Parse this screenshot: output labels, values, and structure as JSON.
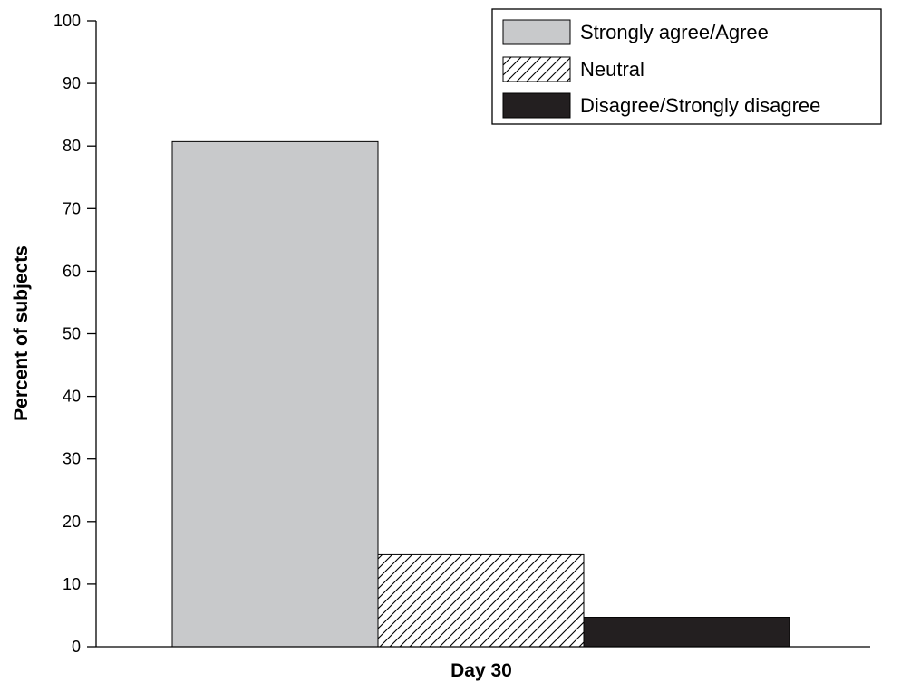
{
  "chart_data": {
    "type": "bar",
    "categories": [
      "Day 30"
    ],
    "series": [
      {
        "name": "Strongly agree/Agree",
        "values": [
          80.7
        ],
        "fill": "#c8c9cb",
        "pattern": "solid"
      },
      {
        "name": "Neutral",
        "values": [
          14.7
        ],
        "fill": "#ffffff",
        "pattern": "diagonal-hatch"
      },
      {
        "name": "Disagree/Strongly disagree",
        "values": [
          4.7
        ],
        "fill": "#231f20",
        "pattern": "solid"
      }
    ],
    "title": "",
    "xlabel": "Day 30",
    "ylabel": "Percent of subjects",
    "ylim": [
      0,
      100
    ],
    "yticks": [
      0,
      10,
      20,
      30,
      40,
      50,
      60,
      70,
      80,
      90,
      100
    ],
    "grid": false,
    "legend_position": "top-right"
  }
}
